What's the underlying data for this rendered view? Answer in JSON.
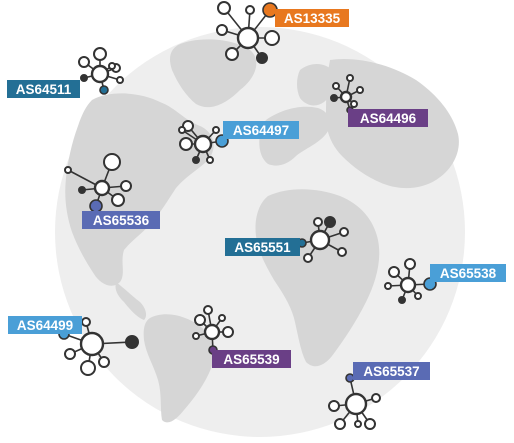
{
  "colors": {
    "globe": "#eeeeee",
    "land": "#d6d6d6",
    "node_stroke": "#333333",
    "node_dark": "#333333"
  },
  "clusters": [
    {
      "id": "as13335",
      "label": "AS13335",
      "color": "#e8781f"
    },
    {
      "id": "as64511",
      "label": "AS64511",
      "color": "#236f95"
    },
    {
      "id": "as64496",
      "label": "AS64496",
      "color": "#6a3f86"
    },
    {
      "id": "as64497",
      "label": "AS64497",
      "color": "#4a9fd7"
    },
    {
      "id": "as65536",
      "label": "AS65536",
      "color": "#5a6bb4"
    },
    {
      "id": "as65551",
      "label": "AS65551",
      "color": "#236f95"
    },
    {
      "id": "as65538",
      "label": "AS65538",
      "color": "#4a9fd7"
    },
    {
      "id": "as64499",
      "label": "AS64499",
      "color": "#4a9fd7"
    },
    {
      "id": "as65539",
      "label": "AS65539",
      "color": "#6a3f86"
    },
    {
      "id": "as65537",
      "label": "AS65537",
      "color": "#5a6bb4"
    }
  ]
}
